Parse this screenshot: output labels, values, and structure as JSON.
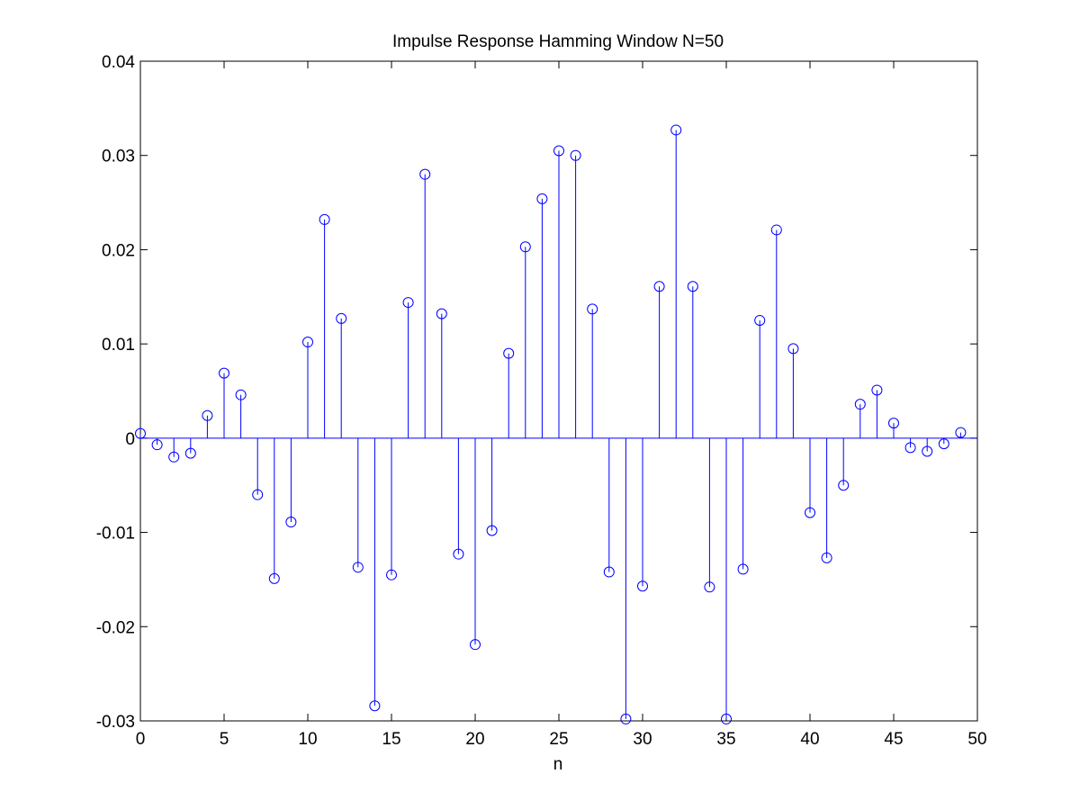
{
  "chart_data": {
    "type": "stem",
    "title": "Impulse Response Hamming Window N=50",
    "xlabel": "n",
    "ylabel": "",
    "xlim": [
      0,
      50
    ],
    "ylim": [
      -0.03,
      0.04
    ],
    "xticks": [
      0,
      5,
      10,
      15,
      20,
      25,
      30,
      35,
      40,
      45,
      50
    ],
    "yticks": [
      -0.03,
      -0.02,
      -0.01,
      0,
      0.01,
      0.02,
      0.03,
      0.04
    ],
    "ytick_labels": [
      "-0.03",
      "-0.02",
      "-0.01",
      "0",
      "0.01",
      "0.02",
      "0.03",
      "0.04"
    ],
    "grid": false,
    "series": [
      {
        "color": "#0000ff",
        "marker": "circle",
        "x": [
          0,
          1,
          2,
          3,
          4,
          5,
          6,
          7,
          8,
          9,
          10,
          11,
          12,
          13,
          14,
          15,
          16,
          17,
          18,
          19,
          20,
          21,
          22,
          23,
          24,
          25,
          26,
          27,
          28,
          29,
          30,
          31,
          32,
          33,
          34,
          35,
          36,
          37,
          38,
          39,
          40,
          41,
          42,
          43,
          44,
          45,
          46,
          47,
          48,
          49
        ],
        "values": [
          0.0005,
          -0.0007,
          -0.002,
          -0.0016,
          0.0024,
          0.0069,
          0.0046,
          -0.006,
          -0.0149,
          -0.0089,
          0.0102,
          0.0232,
          0.0127,
          -0.0137,
          -0.0284,
          -0.0145,
          0.0144,
          0.028,
          0.0132,
          -0.0123,
          -0.0219,
          -0.0098,
          0.009,
          0.0203,
          0.0254,
          0.0305,
          0.03,
          0.0137,
          -0.0142,
          -0.0298,
          -0.0157,
          0.0161,
          0.0327,
          0.0161,
          -0.0158,
          -0.0298,
          -0.0139,
          0.0125,
          0.0221,
          0.0095,
          -0.0079,
          -0.0127,
          -0.005,
          0.0036,
          0.0051,
          0.0016,
          -0.001,
          -0.0014,
          -0.0006,
          0.0006
        ]
      }
    ]
  }
}
